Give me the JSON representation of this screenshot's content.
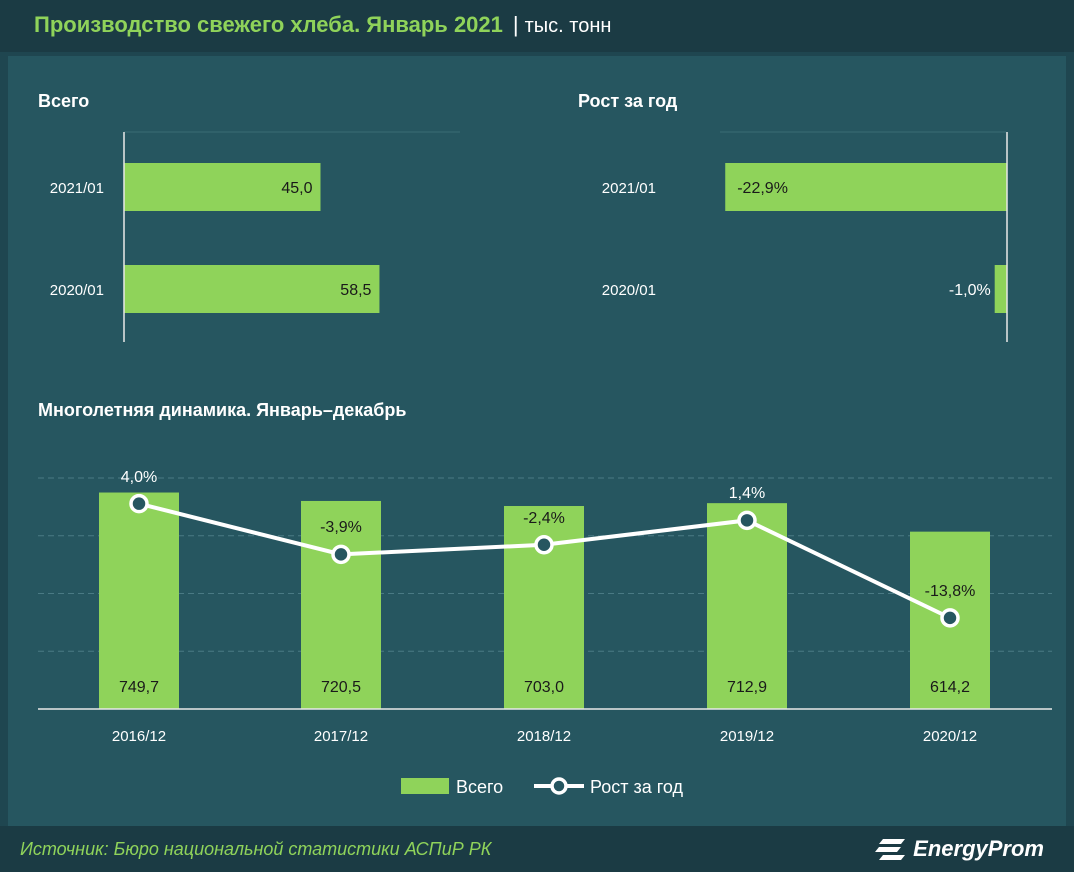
{
  "header": {
    "title": "Производство свежего хлеба. Январь 2021",
    "separator": "|",
    "unit": "тыс. тонн"
  },
  "colors": {
    "bar": "#8fd35a",
    "line": "#ffffff",
    "background": "#265660",
    "header": "#1b3b44"
  },
  "footer": {
    "source": "Источник: Бюро национальной  статистики АСПиР РК",
    "logo_text": "EnergyProm"
  },
  "chart_data": [
    {
      "type": "bar",
      "title": "Всего",
      "orientation": "horizontal",
      "categories": [
        "2021/01",
        "2020/01"
      ],
      "values": [
        45.0,
        58.5
      ],
      "value_labels": [
        "45,0",
        "58,5"
      ]
    },
    {
      "type": "bar",
      "title": "Рост за год",
      "orientation": "horizontal",
      "categories": [
        "2021/01",
        "2020/01"
      ],
      "values": [
        -22.9,
        -1.0
      ],
      "value_labels": [
        "-22,9%",
        "-1,0%"
      ]
    },
    {
      "type": "bar",
      "title": "Многолетняя  динамика.  Январь–декабрь",
      "categories": [
        "2016/12",
        "2017/12",
        "2018/12",
        "2019/12",
        "2020/12"
      ],
      "series": [
        {
          "name": "Всего",
          "type": "bar",
          "values": [
            749.7,
            720.5,
            703.0,
            712.9,
            614.2
          ],
          "value_labels": [
            "749,7",
            "720,5",
            "703,0",
            "712,9",
            "614,2"
          ]
        },
        {
          "name": "Рост за год",
          "type": "line",
          "values": [
            4.0,
            -3.9,
            -2.4,
            1.4,
            -13.8
          ],
          "value_labels": [
            "4,0%",
            "-3,9%",
            "-2,4%",
            "1,4%",
            "-13,8%"
          ]
        }
      ],
      "grid": true,
      "legend": "bottom"
    }
  ]
}
